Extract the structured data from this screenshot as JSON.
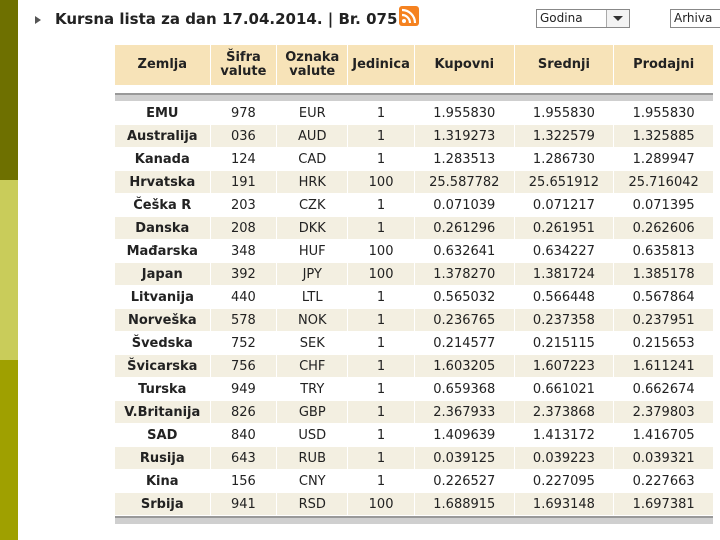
{
  "title": "Kursna lista za dan 17.04.2014. | Br. 075",
  "period_select": {
    "value": "Godina"
  },
  "archive_button": "Arhiva",
  "table": {
    "headers": [
      "Zemlja",
      "Šifra valute",
      "Oznaka valute",
      "Jedinica",
      "Kupovni",
      "Srednji",
      "Prodajni"
    ],
    "rows": [
      [
        "EMU",
        "978",
        "EUR",
        "1",
        "1.955830",
        "1.955830",
        "1.955830"
      ],
      [
        "Australija",
        "036",
        "AUD",
        "1",
        "1.319273",
        "1.322579",
        "1.325885"
      ],
      [
        "Kanada",
        "124",
        "CAD",
        "1",
        "1.283513",
        "1.286730",
        "1.289947"
      ],
      [
        "Hrvatska",
        "191",
        "HRK",
        "100",
        "25.587782",
        "25.651912",
        "25.716042"
      ],
      [
        "Češka R",
        "203",
        "CZK",
        "1",
        "0.071039",
        "0.071217",
        "0.071395"
      ],
      [
        "Danska",
        "208",
        "DKK",
        "1",
        "0.261296",
        "0.261951",
        "0.262606"
      ],
      [
        "Mađarska",
        "348",
        "HUF",
        "100",
        "0.632641",
        "0.634227",
        "0.635813"
      ],
      [
        "Japan",
        "392",
        "JPY",
        "100",
        "1.378270",
        "1.381724",
        "1.385178"
      ],
      [
        "Litvanija",
        "440",
        "LTL",
        "1",
        "0.565032",
        "0.566448",
        "0.567864"
      ],
      [
        "Norveška",
        "578",
        "NOK",
        "1",
        "0.236765",
        "0.237358",
        "0.237951"
      ],
      [
        "Švedska",
        "752",
        "SEK",
        "1",
        "0.214577",
        "0.215115",
        "0.215653"
      ],
      [
        "Švicarska",
        "756",
        "CHF",
        "1",
        "1.603205",
        "1.607223",
        "1.611241"
      ],
      [
        "Turska",
        "949",
        "TRY",
        "1",
        "0.659368",
        "0.661021",
        "0.662674"
      ],
      [
        "V.Britanija",
        "826",
        "GBP",
        "1",
        "2.367933",
        "2.373868",
        "2.379803"
      ],
      [
        "SAD",
        "840",
        "USD",
        "1",
        "1.409639",
        "1.413172",
        "1.416705"
      ],
      [
        "Rusija",
        "643",
        "RUB",
        "1",
        "0.039125",
        "0.039223",
        "0.039321"
      ],
      [
        "Kina",
        "156",
        "CNY",
        "1",
        "0.226527",
        "0.227095",
        "0.227663"
      ],
      [
        "Srbija",
        "941",
        "RSD",
        "100",
        "1.688915",
        "1.693148",
        "1.697381"
      ]
    ]
  },
  "icons": {
    "bullet": "arrow-bullet-icon",
    "rss": "rss-icon",
    "dropdown": "chevron-down-icon"
  },
  "colors": {
    "header_bg": "#f7e3b8",
    "row_alt_bg": "#f3efe1",
    "rss": "#f58220"
  }
}
